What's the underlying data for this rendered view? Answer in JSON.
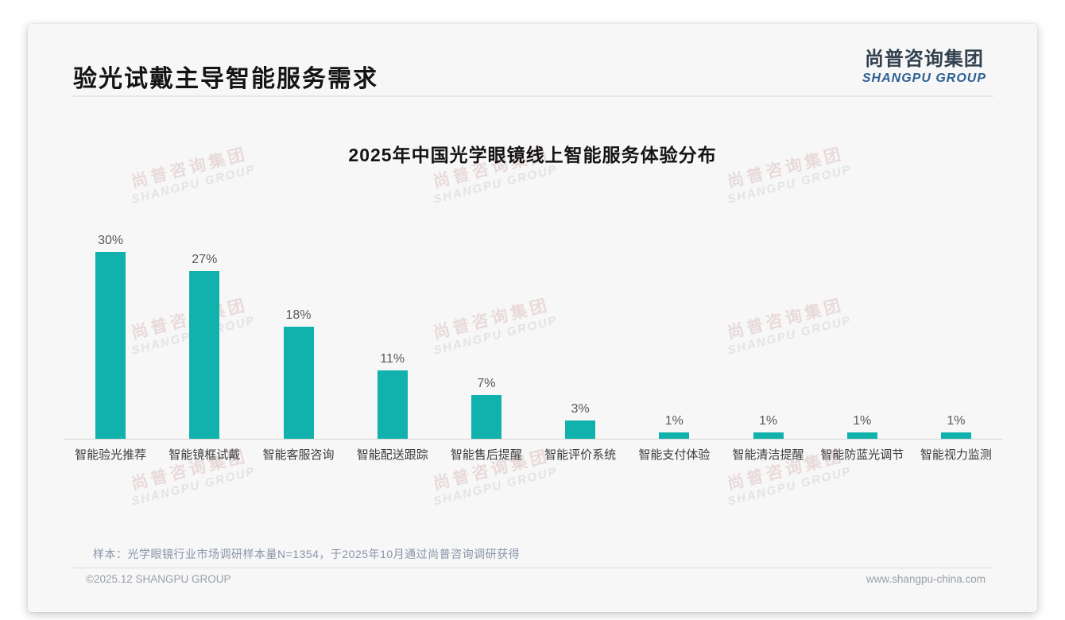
{
  "page": {
    "slide_title": "验光试戴主导智能服务需求",
    "logo": {
      "cn": "尚普咨询集团",
      "en": "SHANGPU GROUP"
    },
    "watermark": {
      "cn": "尚普咨询集团",
      "en": "SHANGPU GROUP"
    },
    "note": "样本：光学眼镜行业市场调研样本量N=1354，于2025年10月通过尚普咨询调研获得",
    "footer_left": "©2025.12 SHANGPU GROUP",
    "footer_right": "www.shangpu-china.com",
    "colors": {
      "bar_teal": "#12b2ac",
      "logo_blue": "#2e6093",
      "title_black": "#141414"
    }
  },
  "chart_data": {
    "type": "bar",
    "title": "2025年中国光学眼镜线上智能服务体验分布",
    "categories": [
      "智能验光推荐",
      "智能镜框试戴",
      "智能客服咨询",
      "智能配送跟踪",
      "智能售后提醒",
      "智能评价系统",
      "智能支付体验",
      "智能清洁提醒",
      "智能防蓝光调节",
      "智能视力监测"
    ],
    "values": [
      30,
      27,
      18,
      11,
      7,
      3,
      1,
      1,
      1,
      1
    ],
    "unit": "%",
    "xlabel": "",
    "ylabel": "",
    "ylim": [
      0,
      32
    ],
    "grid": false,
    "legend": false,
    "bar_color": "#12b2ac",
    "value_labels": [
      "30%",
      "27%",
      "18%",
      "11%",
      "7%",
      "3%",
      "1%",
      "1%",
      "1%",
      "1%"
    ]
  }
}
